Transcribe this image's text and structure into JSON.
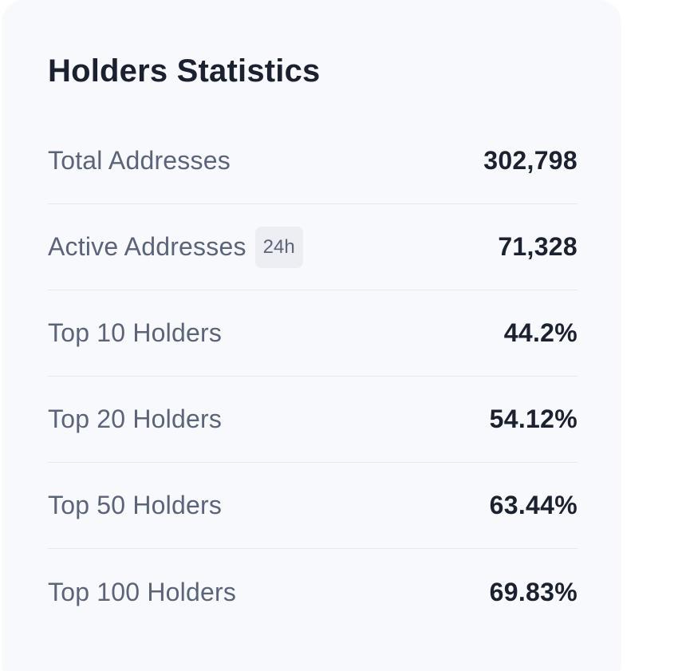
{
  "card": {
    "title": "Holders Statistics",
    "rows": [
      {
        "label": "Total Addresses",
        "badge": null,
        "value": "302,798"
      },
      {
        "label": "Active Addresses",
        "badge": "24h",
        "value": "71,328"
      },
      {
        "label": "Top 10 Holders",
        "badge": null,
        "value": "44.2%"
      },
      {
        "label": "Top 20 Holders",
        "badge": null,
        "value": "54.12%"
      },
      {
        "label": "Top 50 Holders",
        "badge": null,
        "value": "63.44%"
      },
      {
        "label": "Top 100 Holders",
        "badge": null,
        "value": "69.83%"
      }
    ]
  },
  "colors": {
    "card_background": "#f8f9fc",
    "title": "#1c2130",
    "label": "#5b6478",
    "value": "#1c2130",
    "divider": "#e6e8ee",
    "badge_background": "#eceef3"
  }
}
